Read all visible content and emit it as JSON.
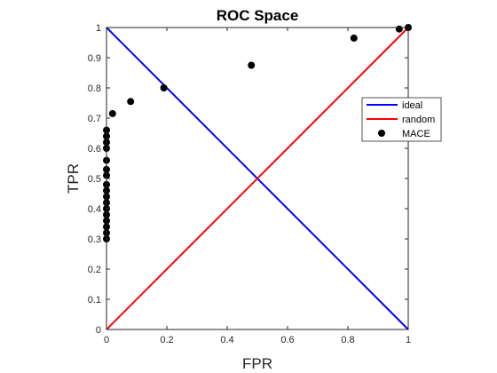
{
  "chart_data": {
    "type": "scatter",
    "title": "ROC Space",
    "xlabel": "FPR",
    "ylabel": "TPR",
    "xlim": [
      0,
      1
    ],
    "ylim": [
      0,
      1
    ],
    "x_ticks": [
      "0",
      "0.2",
      "0.4",
      "0.6",
      "0.8",
      "1"
    ],
    "y_ticks": [
      "0",
      "0.1",
      "0.2",
      "0.3",
      "0.4",
      "0.5",
      "0.6",
      "0.7",
      "0.8",
      "0.9",
      "1"
    ],
    "grid": false,
    "legend_position": "top-right",
    "series": [
      {
        "name": "ideal",
        "kind": "line",
        "color": "#0000ff",
        "points": [
          [
            0,
            1
          ],
          [
            1,
            0
          ]
        ]
      },
      {
        "name": "random",
        "kind": "line",
        "color": "#ff0000",
        "points": [
          [
            0,
            0
          ],
          [
            1,
            1
          ]
        ]
      },
      {
        "name": "MACE",
        "kind": "scatter",
        "color": "#000000",
        "points": [
          [
            0.0,
            0.3
          ],
          [
            0.0,
            0.32
          ],
          [
            0.0,
            0.34
          ],
          [
            0.0,
            0.36
          ],
          [
            0.0,
            0.38
          ],
          [
            0.0,
            0.4
          ],
          [
            0.0,
            0.42
          ],
          [
            0.0,
            0.44
          ],
          [
            0.0,
            0.46
          ],
          [
            0.0,
            0.48
          ],
          [
            0.0,
            0.51
          ],
          [
            0.0,
            0.53
          ],
          [
            0.0,
            0.56
          ],
          [
            0.0,
            0.6
          ],
          [
            0.0,
            0.62
          ],
          [
            0.0,
            0.64
          ],
          [
            0.0,
            0.66
          ],
          [
            0.02,
            0.715
          ],
          [
            0.08,
            0.755
          ],
          [
            0.19,
            0.8
          ],
          [
            0.48,
            0.875
          ],
          [
            0.82,
            0.965
          ],
          [
            0.97,
            0.995
          ],
          [
            1.0,
            1.0
          ]
        ]
      }
    ]
  }
}
